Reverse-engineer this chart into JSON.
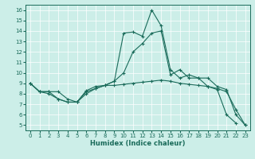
{
  "xlabel": "Humidex (Indice chaleur)",
  "bg_color": "#cceee8",
  "line_color": "#1a6b5a",
  "grid_color": "#ffffff",
  "xlim": [
    -0.5,
    23.5
  ],
  "ylim": [
    4.5,
    16.5
  ],
  "xticks": [
    0,
    1,
    2,
    3,
    4,
    5,
    6,
    7,
    8,
    9,
    10,
    11,
    12,
    13,
    14,
    15,
    16,
    17,
    18,
    19,
    20,
    21,
    22,
    23
  ],
  "yticks": [
    5,
    6,
    7,
    8,
    9,
    10,
    11,
    12,
    13,
    14,
    15,
    16
  ],
  "line1_x": [
    0,
    1,
    2,
    3,
    4,
    5,
    6,
    7,
    8,
    9,
    10,
    11,
    12,
    13,
    14,
    15,
    16,
    17,
    18,
    19,
    20,
    21,
    22,
    23
  ],
  "line1_y": [
    9.0,
    8.2,
    8.2,
    8.2,
    7.5,
    7.2,
    8.2,
    8.5,
    8.8,
    9.2,
    13.8,
    13.9,
    13.5,
    16.0,
    14.5,
    10.3,
    9.5,
    9.8,
    9.5,
    8.7,
    8.4,
    6.0,
    5.2,
    null
  ],
  "line2_x": [
    0,
    1,
    2,
    3,
    4,
    5,
    6,
    7,
    8,
    9,
    10,
    11,
    12,
    13,
    14,
    15,
    16,
    17,
    18,
    19,
    20,
    21,
    22,
    23
  ],
  "line2_y": [
    9.0,
    8.2,
    8.0,
    7.5,
    7.2,
    7.2,
    8.0,
    8.5,
    8.8,
    9.2,
    10.0,
    12.0,
    12.8,
    13.8,
    14.0,
    9.8,
    10.3,
    9.5,
    9.5,
    9.5,
    8.7,
    8.4,
    6.0,
    5.0
  ],
  "line3_x": [
    0,
    1,
    2,
    3,
    4,
    5,
    6,
    7,
    8,
    9,
    10,
    11,
    12,
    13,
    14,
    15,
    16,
    17,
    18,
    19,
    20,
    21,
    22,
    23
  ],
  "line3_y": [
    9.0,
    8.2,
    8.2,
    7.5,
    7.2,
    7.2,
    8.3,
    8.7,
    8.8,
    8.8,
    8.9,
    9.0,
    9.1,
    9.2,
    9.3,
    9.2,
    9.0,
    8.9,
    8.8,
    8.7,
    8.5,
    8.2,
    6.5,
    5.0
  ]
}
